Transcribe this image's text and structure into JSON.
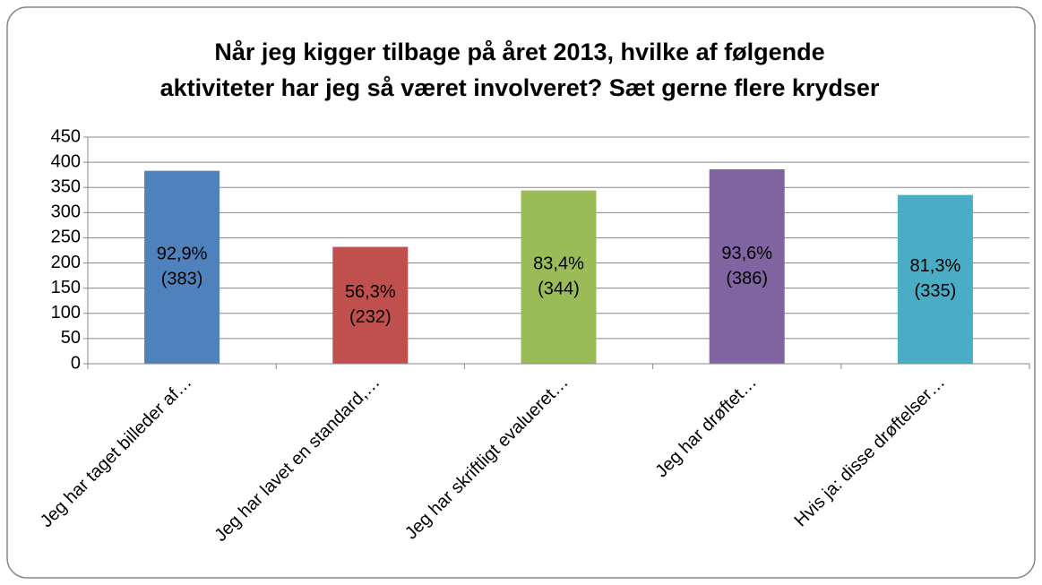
{
  "chart_data": {
    "type": "bar",
    "title": [
      "Når jeg kigger tilbage på året 2013, hvilke af følgende",
      "aktiviteter har jeg så været involveret? Sæt gerne flere krydser"
    ],
    "categories": [
      "Jeg har taget billeder af…",
      "Jeg har lavet en standard,…",
      "Jeg har skriftligt evalueret…",
      "Jeg har drøftet…",
      "Hvis ja: disse drøftelser…"
    ],
    "values": [
      383,
      232,
      344,
      386,
      335
    ],
    "value_labels": [
      [
        "92,9%",
        "(383)"
      ],
      [
        "56,3%",
        "(232)"
      ],
      [
        "83,4%",
        "(344)"
      ],
      [
        "93,6%",
        "(386)"
      ],
      [
        "81,3%",
        "(335)"
      ]
    ],
    "colors": [
      "#4f81bd",
      "#c0504d",
      "#9bbb59",
      "#8064a2",
      "#4bacc6"
    ],
    "ylim": [
      0,
      450
    ],
    "yticks": [
      0,
      50,
      100,
      150,
      200,
      250,
      300,
      350,
      400,
      450
    ],
    "grid": true
  }
}
